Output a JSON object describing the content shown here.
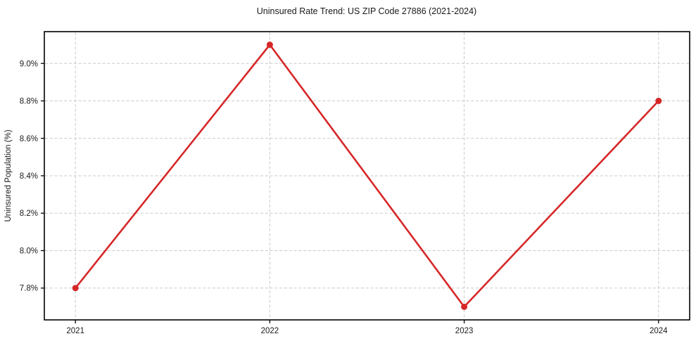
{
  "chart_data": {
    "type": "line",
    "title": "Uninsured Rate Trend: US ZIP Code 27886 (2021-2024)",
    "xlabel": "",
    "ylabel": "Uninsured Population (%)",
    "categories": [
      "2021",
      "2022",
      "2023",
      "2024"
    ],
    "x": [
      2021,
      2022,
      2023,
      2024
    ],
    "series": [
      {
        "values": [
          7.8,
          9.1,
          7.7,
          8.8
        ],
        "color": "#d62728",
        "marker": "circle"
      }
    ],
    "xlim": [
      2020.84,
      2024.16
    ],
    "ylim": [
      7.63,
      9.17
    ],
    "yticks": [
      7.8,
      8.0,
      8.2,
      8.4,
      8.6,
      8.8,
      9.0
    ],
    "ytick_labels": [
      "7.8%",
      "8.0%",
      "8.2%",
      "8.4%",
      "8.6%",
      "8.8%",
      "9.0%"
    ],
    "xtick_labels": [
      "2021",
      "2022",
      "2023",
      "2024"
    ],
    "grid": true,
    "legend": "none",
    "colors": {
      "line": "#d62728",
      "grid": "#c9c9c9",
      "spine": "#000000",
      "text": "#1a1a1a",
      "background": "#ffffff"
    }
  }
}
